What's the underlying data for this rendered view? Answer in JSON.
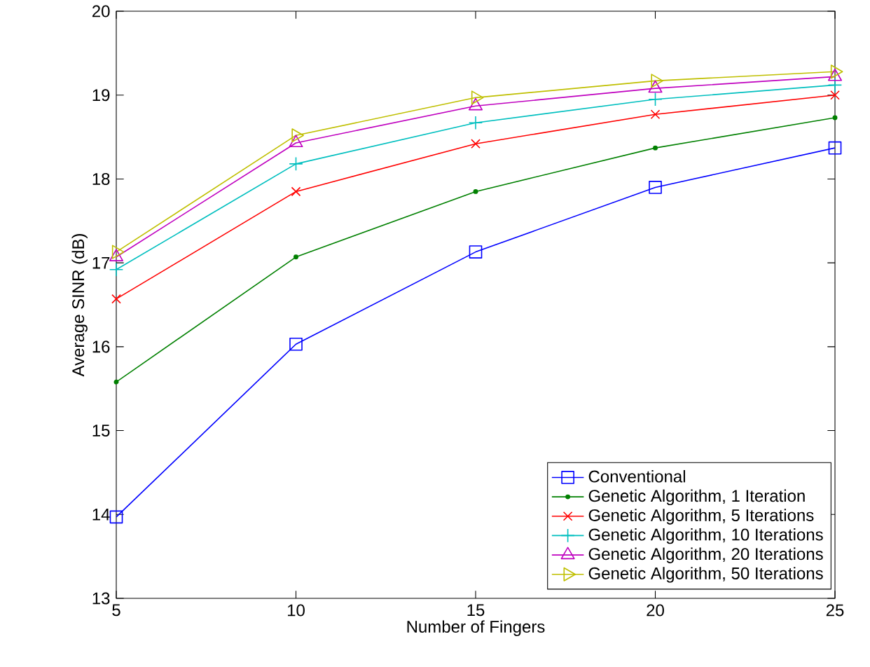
{
  "chart_data": {
    "type": "line",
    "xlabel": "Number of Fingers",
    "ylabel": "Average SINR (dB)",
    "x": [
      5,
      10,
      15,
      20,
      25
    ],
    "xlim": [
      5,
      25
    ],
    "xticks": [
      5,
      10,
      15,
      20,
      25
    ],
    "ylim": [
      13,
      20
    ],
    "yticks": [
      13,
      14,
      15,
      16,
      17,
      18,
      19,
      20
    ],
    "grid": false,
    "legend": "bottom right",
    "line_style": "solid",
    "series": [
      {
        "name": "Conventional",
        "color": "#0000ff",
        "marker": "square",
        "values": [
          13.97,
          16.03,
          17.13,
          17.9,
          18.37
        ]
      },
      {
        "name": "Genetic Algorithm, 1 Iteration",
        "color": "#008000",
        "marker": "circle",
        "values": [
          15.58,
          17.07,
          17.85,
          18.37,
          18.73
        ]
      },
      {
        "name": "Genetic Algorithm, 5 Iterations",
        "color": "#ff0000",
        "marker": "cross",
        "values": [
          16.57,
          17.85,
          18.42,
          18.77,
          19.0
        ]
      },
      {
        "name": "Genetic Algorithm, 10 Iterations",
        "color": "#00bfbf",
        "marker": "plus",
        "values": [
          16.92,
          18.18,
          18.67,
          18.95,
          19.12
        ]
      },
      {
        "name": "Genetic Algorithm, 20 Iterations",
        "color": "#bf00bf",
        "marker": "triangle",
        "values": [
          17.07,
          18.43,
          18.87,
          19.08,
          19.22
        ]
      },
      {
        "name": "Genetic Algorithm, 50 Iterations",
        "color": "#bfbf00",
        "marker": "triangle-right",
        "values": [
          17.13,
          18.52,
          18.97,
          19.17,
          19.28
        ]
      }
    ]
  }
}
